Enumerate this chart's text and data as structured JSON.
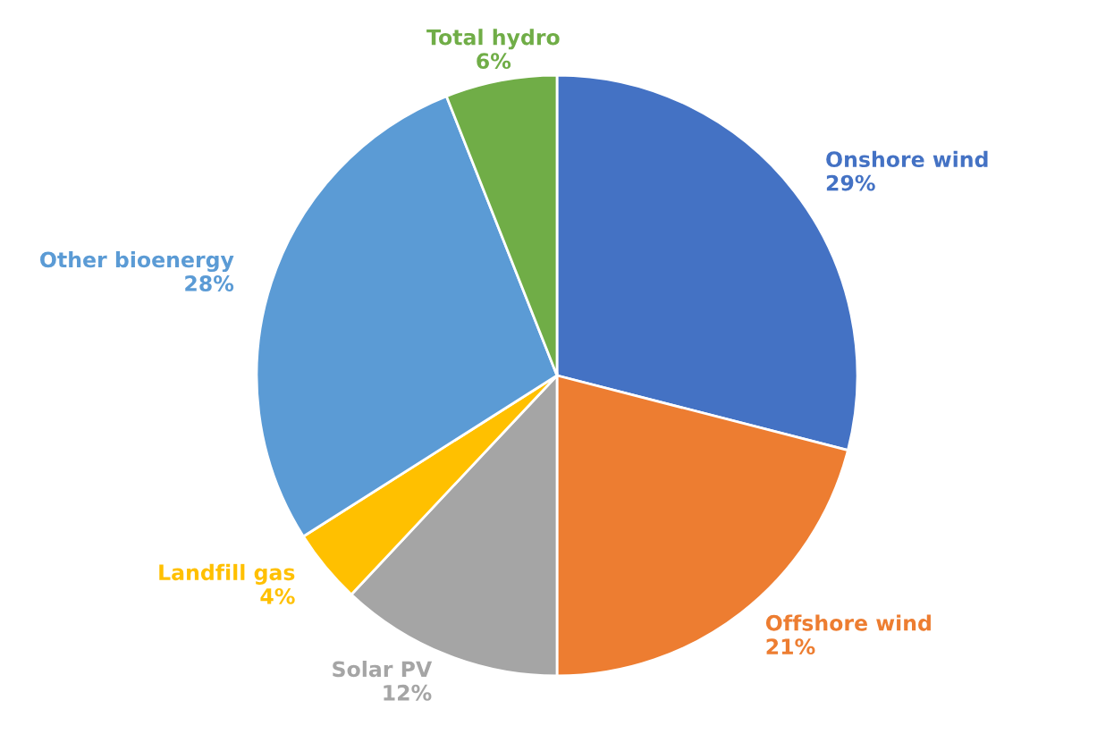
{
  "chart_data": {
    "type": "pie",
    "categories": [
      "Onshore wind",
      "Offshore wind",
      "Solar PV",
      "Landfill gas",
      "Other bioenergy",
      "Total hydro"
    ],
    "values": [
      29,
      21,
      12,
      4,
      28,
      6
    ],
    "value_labels": [
      "29%",
      "21%",
      "12%",
      "4%",
      "28%",
      "6%"
    ],
    "colors": [
      "#4472c4",
      "#ed7d31",
      "#a5a5a5",
      "#ffc000",
      "#5b9bd5",
      "#70ad47"
    ],
    "legend": false
  }
}
